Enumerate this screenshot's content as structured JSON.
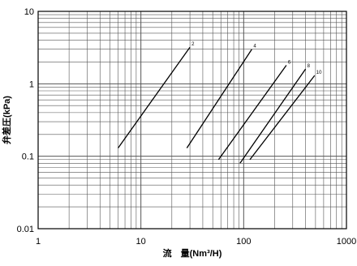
{
  "chart_data": {
    "type": "line",
    "xlabel": "流　量(Nm³/H)",
    "ylabel": "弁差圧(kPa)",
    "x_scale": "log",
    "y_scale": "log",
    "xlim": [
      1,
      1000
    ],
    "ylim": [
      0.01,
      10
    ],
    "grid": true,
    "x_ticks": [
      "1",
      "10",
      "100",
      "1000"
    ],
    "y_ticks": [
      "10",
      "1",
      "0.1",
      "0.01"
    ],
    "series": [
      {
        "name": "2",
        "x": [
          6,
          30
        ],
        "y": [
          0.13,
          3.2
        ]
      },
      {
        "name": "4",
        "x": [
          28,
          120
        ],
        "y": [
          0.13,
          3.0
        ]
      },
      {
        "name": "6",
        "x": [
          57,
          260
        ],
        "y": [
          0.09,
          1.8
        ]
      },
      {
        "name": "8",
        "x": [
          92,
          400
        ],
        "y": [
          0.08,
          1.6
        ]
      },
      {
        "name": "10",
        "x": [
          115,
          490
        ],
        "y": [
          0.09,
          1.3
        ]
      }
    ]
  },
  "colors": {
    "line": "#000000",
    "grid": "#555555",
    "background": "#ffffff"
  }
}
